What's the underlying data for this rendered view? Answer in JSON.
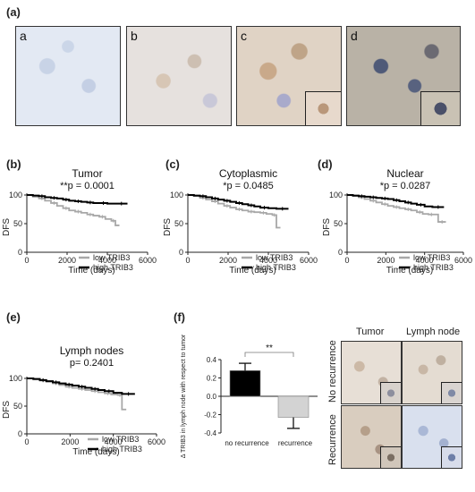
{
  "panels": {
    "a": {
      "label": "(a)",
      "images": [
        "a",
        "b",
        "c",
        "d"
      ]
    },
    "b": {
      "label": "(b)"
    },
    "c": {
      "label": "(c)"
    },
    "d": {
      "label": "(d)"
    },
    "e": {
      "label": "(e)"
    },
    "f": {
      "label": "(f)"
    }
  },
  "micro_grid": {
    "col_headers": [
      "Tumor",
      "Lymph node"
    ],
    "row_labels": [
      "No recurrence",
      "Recurrence"
    ]
  },
  "colors": {
    "high": "#000000",
    "low": "#a8a8a8",
    "bar_no_recurrence": "#000000",
    "bar_recurrence": "#d3d3d3"
  },
  "chart_data": [
    {
      "id": "b",
      "type": "line",
      "title": "Tumor",
      "subtitle": "**p  = 0.0001",
      "xlabel": "Time  (days)",
      "ylabel": "DFS",
      "xlim": [
        0,
        6000
      ],
      "ylim": [
        0,
        100
      ],
      "xticks": [
        0,
        2000,
        4000,
        6000
      ],
      "yticks": [
        0,
        50,
        100
      ],
      "legend": "bottom-right",
      "series": [
        {
          "name": "low  TRIB3",
          "color": "#a8a8a8",
          "censor_end": [
            4300,
            4600
          ],
          "x": [
            0,
            300,
            600,
            900,
            1200,
            1500,
            1800,
            2100,
            2400,
            2700,
            3000,
            3300,
            3600,
            3900,
            4200,
            4400,
            4600
          ],
          "y": [
            100,
            97,
            94,
            90,
            86,
            81,
            77,
            73,
            71,
            69,
            66,
            64,
            62,
            58,
            55,
            47,
            47
          ]
        },
        {
          "name": "high TRIB3",
          "color": "#000000",
          "censor_end": [
            4400,
            5000
          ],
          "x": [
            0,
            300,
            600,
            900,
            1200,
            1500,
            1800,
            2100,
            2400,
            2700,
            3000,
            3300,
            3600,
            4000,
            4400,
            5000
          ],
          "y": [
            100,
            99,
            98,
            96,
            95,
            94,
            92,
            90,
            89,
            88,
            87,
            86,
            86,
            85,
            85,
            85
          ]
        }
      ]
    },
    {
      "id": "c",
      "type": "line",
      "title": "Cytoplasmic",
      "subtitle": "*p  = 0.0485",
      "xlabel": "Time  (days)",
      "ylabel": "DFS",
      "xlim": [
        0,
        6000
      ],
      "ylim": [
        0,
        100
      ],
      "xticks": [
        0,
        2000,
        4000,
        6000
      ],
      "yticks": [
        0,
        50,
        100
      ],
      "legend": "bottom-right",
      "series": [
        {
          "name": "low  TRIB3",
          "color": "#a8a8a8",
          "censor_end": [
            4300,
            4600
          ],
          "x": [
            0,
            300,
            600,
            900,
            1200,
            1500,
            1800,
            2100,
            2400,
            2700,
            3000,
            3300,
            3600,
            3900,
            4200,
            4400,
            4600
          ],
          "y": [
            100,
            98,
            95,
            92,
            89,
            85,
            81,
            78,
            75,
            73,
            71,
            70,
            69,
            67,
            65,
            43,
            43
          ]
        },
        {
          "name": "high TRIB3",
          "color": "#000000",
          "censor_end": [
            4400,
            5000
          ],
          "x": [
            0,
            300,
            600,
            900,
            1200,
            1500,
            1800,
            2100,
            2400,
            2700,
            3000,
            3300,
            3600,
            4000,
            4400,
            5000
          ],
          "y": [
            100,
            99,
            98,
            96,
            94,
            92,
            90,
            88,
            86,
            84,
            82,
            80,
            78,
            77,
            76,
            76
          ]
        }
      ]
    },
    {
      "id": "d",
      "type": "line",
      "title": "Nuclear",
      "subtitle": "*p  = 0.0287",
      "xlabel": "Time  (days)",
      "ylabel": "DFS",
      "xlim": [
        0,
        6000
      ],
      "ylim": [
        0,
        100
      ],
      "xticks": [
        0,
        2000,
        4000,
        6000
      ],
      "yticks": [
        0,
        50,
        100
      ],
      "legend": "bottom-right",
      "series": [
        {
          "name": "low  TRIB3",
          "color": "#a8a8a8",
          "censor_end": [
            4600,
            5100
          ],
          "x": [
            0,
            300,
            600,
            900,
            1200,
            1500,
            1800,
            2100,
            2400,
            2700,
            3000,
            3300,
            3600,
            3900,
            4200,
            4500,
            4700,
            5100
          ],
          "y": [
            100,
            98,
            96,
            93,
            90,
            87,
            84,
            81,
            79,
            77,
            75,
            73,
            70,
            67,
            66,
            66,
            53,
            53
          ]
        },
        {
          "name": "high TRIB3",
          "color": "#000000",
          "censor_end": [
            4600,
            5000
          ],
          "x": [
            0,
            300,
            600,
            900,
            1200,
            1500,
            1800,
            2100,
            2400,
            2700,
            3000,
            3300,
            3600,
            4000,
            4400,
            5000
          ],
          "y": [
            100,
            99,
            98,
            97,
            96,
            95,
            94,
            93,
            91,
            89,
            87,
            85,
            83,
            80,
            79,
            79
          ]
        }
      ]
    },
    {
      "id": "e",
      "type": "line",
      "title": "Lymph nodes",
      "subtitle": "p= 0.2401",
      "xlabel": "Time  (days)",
      "ylabel": "DFS",
      "xlim": [
        0,
        6000
      ],
      "ylim": [
        0,
        100
      ],
      "xticks": [
        0,
        2000,
        4000,
        6000
      ],
      "yticks": [
        0,
        50,
        100
      ],
      "legend": "bottom-right",
      "series": [
        {
          "name": "low  TRIB3",
          "color": "#a8a8a8",
          "censor_end": [
            4300,
            4600
          ],
          "x": [
            0,
            300,
            600,
            900,
            1200,
            1500,
            1800,
            2100,
            2400,
            2700,
            3000,
            3300,
            3600,
            3900,
            4200,
            4400,
            4600
          ],
          "y": [
            100,
            98,
            96,
            94,
            91,
            88,
            85,
            83,
            81,
            79,
            77,
            75,
            73,
            71,
            70,
            44,
            44
          ]
        },
        {
          "name": "high TRIB3",
          "color": "#000000",
          "censor_end": [
            4400,
            5000
          ],
          "x": [
            0,
            300,
            600,
            900,
            1200,
            1500,
            1800,
            2100,
            2400,
            2700,
            3000,
            3300,
            3600,
            4000,
            4400,
            5000
          ],
          "y": [
            100,
            99,
            97,
            95,
            93,
            91,
            89,
            87,
            85,
            83,
            81,
            79,
            77,
            74,
            72,
            72
          ]
        }
      ]
    },
    {
      "id": "f",
      "type": "bar",
      "ylabel": "Δ TRIB3 in lymph node with respect to tumor",
      "categories": [
        "no recurrence",
        "recurrence"
      ],
      "values": [
        0.28,
        -0.23
      ],
      "errors": [
        0.08,
        0.12
      ],
      "ylim": [
        -0.4,
        0.4
      ],
      "yticks": [
        -0.4,
        -0.2,
        0.0,
        0.2,
        0.4
      ],
      "ytick_labels": [
        "-0.4",
        "-0.2",
        "0.0",
        "0.2",
        "0.4"
      ],
      "significance": "**"
    }
  ]
}
